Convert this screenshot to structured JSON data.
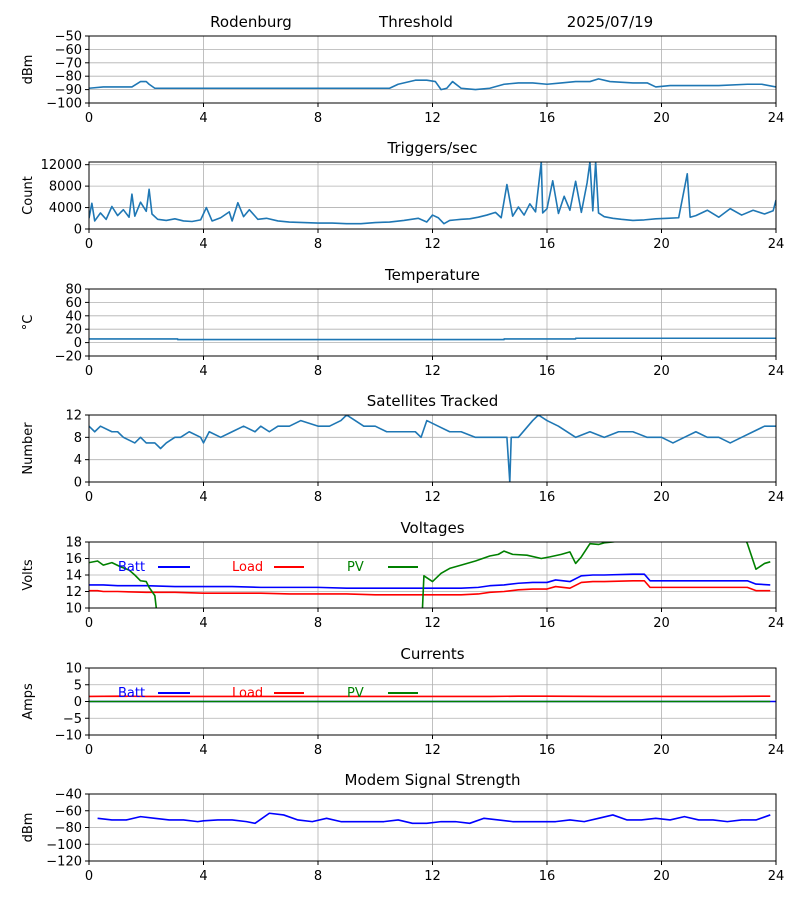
{
  "header": {
    "station": "Rodenburg",
    "mode": "Threshold",
    "date": "2025/07/19"
  },
  "chart_data": [
    {
      "id": "threshold",
      "type": "line",
      "title": "",
      "ylabel": "dBm",
      "xlim": [
        0,
        24
      ],
      "ylim": [
        -100,
        -50
      ],
      "xticks": [
        0,
        4,
        8,
        12,
        16,
        20,
        24
      ],
      "yticks": [
        -100,
        -90,
        -80,
        -70,
        -60,
        -50
      ],
      "grid": true,
      "series": [
        {
          "color": "#1f77b4",
          "x": [
            0,
            0.5,
            1,
            1.5,
            1.8,
            2.0,
            2.1,
            2.3,
            3,
            4,
            5,
            6,
            7,
            8,
            9,
            10,
            10.5,
            10.8,
            11.4,
            11.8,
            12.1,
            12.3,
            12.5,
            12.7,
            13,
            13.5,
            14,
            14.5,
            15,
            15.5,
            16,
            16.5,
            17,
            17.5,
            17.8,
            18.2,
            19,
            19.5,
            19.8,
            20.3,
            21,
            22,
            23,
            23.5,
            24
          ],
          "y": [
            -89,
            -88,
            -88,
            -88,
            -84,
            -84,
            -86,
            -89,
            -89,
            -89,
            -89,
            -89,
            -89,
            -89,
            -89,
            -89,
            -89,
            -86,
            -83,
            -83,
            -84,
            -90,
            -89,
            -84,
            -89,
            -90,
            -89,
            -86,
            -85,
            -85,
            -86,
            -85,
            -84,
            -84,
            -82,
            -84,
            -85,
            -85,
            -88,
            -87,
            -87,
            -87,
            -86,
            -86,
            -88
          ]
        }
      ]
    },
    {
      "id": "triggers",
      "type": "line",
      "title": "Triggers/sec",
      "ylabel": "Count",
      "xlim": [
        0,
        24
      ],
      "ylim": [
        0,
        12500
      ],
      "xticks": [
        0,
        4,
        8,
        12,
        16,
        20,
        24
      ],
      "yticks": [
        0,
        4000,
        8000,
        12000
      ],
      "grid": true,
      "series": [
        {
          "color": "#1f77b4",
          "x": [
            0,
            0.1,
            0.2,
            0.4,
            0.6,
            0.8,
            1.0,
            1.2,
            1.4,
            1.5,
            1.6,
            1.8,
            2.0,
            2.1,
            2.2,
            2.4,
            2.7,
            3.0,
            3.3,
            3.6,
            3.9,
            4.1,
            4.3,
            4.6,
            4.9,
            5.0,
            5.2,
            5.4,
            5.6,
            5.9,
            6.2,
            6.6,
            7.0,
            7.5,
            8.0,
            8.5,
            9.0,
            9.5,
            10.0,
            10.5,
            11.0,
            11.5,
            11.8,
            12.0,
            12.2,
            12.4,
            12.6,
            12.8,
            13.0,
            13.3,
            13.6,
            13.9,
            14.2,
            14.4,
            14.6,
            14.8,
            15.0,
            15.2,
            15.4,
            15.6,
            15.8,
            15.85,
            16.0,
            16.2,
            16.4,
            16.6,
            16.8,
            17.0,
            17.2,
            17.4,
            17.5,
            17.6,
            17.7,
            17.8,
            18.0,
            18.3,
            18.6,
            19.0,
            19.4,
            19.8,
            20.2,
            20.6,
            20.9,
            21.0,
            21.2,
            21.6,
            22.0,
            22.4,
            22.8,
            23.2,
            23.6,
            23.9,
            24.0
          ],
          "y": [
            2000,
            4800,
            1500,
            3000,
            1800,
            4200,
            2500,
            3600,
            2200,
            6500,
            2400,
            5000,
            3300,
            7400,
            2800,
            1800,
            1600,
            1900,
            1500,
            1400,
            1700,
            4000,
            1500,
            2100,
            3200,
            1500,
            4900,
            2300,
            3600,
            1800,
            2000,
            1500,
            1300,
            1200,
            1100,
            1100,
            1000,
            1000,
            1200,
            1300,
            1600,
            2000,
            1300,
            2600,
            2100,
            1000,
            1600,
            1700,
            1800,
            1900,
            2200,
            2600,
            3100,
            2100,
            8300,
            2400,
            4100,
            2600,
            4700,
            3200,
            12500,
            3000,
            3800,
            9000,
            2900,
            6100,
            3500,
            8900,
            3100,
            8600,
            12500,
            3400,
            12500,
            3000,
            2300,
            2000,
            1800,
            1600,
            1700,
            1900,
            2000,
            2100,
            10300,
            2200,
            2500,
            3500,
            2200,
            3800,
            2600,
            3500,
            2800,
            3400,
            5400
          ]
        }
      ]
    },
    {
      "id": "temperature",
      "type": "line",
      "title": "Temperature",
      "ylabel": "°C",
      "xlim": [
        0,
        24
      ],
      "ylim": [
        -20,
        80
      ],
      "xticks": [
        0,
        4,
        8,
        12,
        16,
        20,
        24
      ],
      "yticks": [
        -20,
        0,
        20,
        40,
        60,
        80
      ],
      "grid": true,
      "series": [
        {
          "color": "#1f77b4",
          "x": [
            0,
            3.1,
            3.1,
            14.5,
            14.5,
            17,
            17,
            24
          ],
          "y": [
            5.5,
            5.5,
            4.5,
            4.5,
            5.5,
            5.5,
            6.5,
            6.5
          ]
        }
      ]
    },
    {
      "id": "satellites",
      "type": "line",
      "title": "Satellites Tracked",
      "ylabel": "Number",
      "xlim": [
        0,
        24
      ],
      "ylim": [
        0,
        12
      ],
      "xticks": [
        0,
        4,
        8,
        12,
        16,
        20,
        24
      ],
      "yticks": [
        0,
        4,
        8,
        12
      ],
      "grid": true,
      "series": [
        {
          "color": "#1f77b4",
          "x": [
            0,
            0.2,
            0.4,
            0.8,
            1.0,
            1.2,
            1.6,
            1.8,
            2.0,
            2.3,
            2.5,
            2.7,
            3.0,
            3.2,
            3.5,
            3.9,
            4.0,
            4.2,
            4.6,
            5.0,
            5.4,
            5.8,
            6.0,
            6.3,
            6.6,
            7.0,
            7.4,
            8.0,
            8.4,
            8.8,
            9.0,
            9.3,
            9.6,
            10.0,
            10.4,
            10.8,
            11.0,
            11.4,
            11.6,
            11.8,
            12.2,
            12.6,
            13.0,
            13.5,
            14.0,
            14.6,
            14.7,
            14.75,
            15.0,
            15.5,
            15.7,
            16.0,
            16.4,
            17.0,
            17.5,
            18.0,
            18.5,
            19.0,
            19.5,
            20.0,
            20.4,
            20.8,
            21.2,
            21.6,
            22.0,
            22.4,
            22.8,
            23.2,
            23.6,
            24.0
          ],
          "y": [
            10,
            9,
            10,
            9,
            9,
            8,
            7,
            8,
            7,
            7,
            6,
            7,
            8,
            8,
            9,
            8,
            7,
            9,
            8,
            9,
            10,
            9,
            10,
            9,
            10,
            10,
            11,
            10,
            10,
            11,
            12,
            11,
            10,
            10,
            9,
            9,
            9,
            9,
            8,
            11,
            10,
            9,
            9,
            8,
            8,
            8,
            0,
            8,
            8,
            11,
            12,
            11,
            10,
            8,
            9,
            8,
            9,
            9,
            8,
            8,
            7,
            8,
            9,
            8,
            8,
            7,
            8,
            9,
            10,
            10
          ]
        }
      ]
    },
    {
      "id": "voltages",
      "type": "line",
      "title": "Voltages",
      "ylabel": "Volts",
      "xlim": [
        0,
        24
      ],
      "ylim": [
        10,
        18
      ],
      "xticks": [
        0,
        4,
        8,
        12,
        16,
        20,
        24
      ],
      "yticks": [
        10,
        12,
        14,
        16,
        18
      ],
      "grid": true,
      "legend": "inline-top",
      "series": [
        {
          "name": "Batt",
          "color": "#0000ff",
          "x": [
            0,
            0.3,
            0.5,
            1,
            2,
            3,
            4,
            5,
            6,
            7,
            8,
            9,
            10,
            11,
            12,
            13,
            13.6,
            14,
            14.5,
            15,
            15.5,
            16,
            16.3,
            16.8,
            17.2,
            17.6,
            18,
            19,
            19.4,
            19.6,
            20,
            21,
            22,
            23,
            23.3,
            23.8
          ],
          "y": [
            12.8,
            12.8,
            12.8,
            12.7,
            12.7,
            12.6,
            12.6,
            12.6,
            12.5,
            12.5,
            12.5,
            12.4,
            12.4,
            12.4,
            12.4,
            12.4,
            12.5,
            12.7,
            12.8,
            13.0,
            13.1,
            13.1,
            13.4,
            13.2,
            13.9,
            14.0,
            14.0,
            14.1,
            14.1,
            13.3,
            13.3,
            13.3,
            13.3,
            13.3,
            12.9,
            12.8
          ]
        },
        {
          "name": "Load",
          "color": "#ff0000",
          "x": [
            0,
            0.3,
            0.5,
            1,
            2,
            3,
            4,
            5,
            6,
            7,
            8,
            9,
            10,
            11,
            12,
            13,
            13.6,
            14,
            14.5,
            15,
            15.5,
            16,
            16.3,
            16.8,
            17.2,
            17.6,
            18,
            19,
            19.4,
            19.6,
            20,
            21,
            22,
            23,
            23.3,
            23.8
          ],
          "y": [
            12.1,
            12.1,
            12.0,
            12.0,
            11.9,
            11.9,
            11.8,
            11.8,
            11.8,
            11.7,
            11.7,
            11.7,
            11.6,
            11.6,
            11.6,
            11.6,
            11.7,
            11.9,
            12.0,
            12.2,
            12.3,
            12.3,
            12.6,
            12.4,
            13.1,
            13.2,
            13.2,
            13.3,
            13.3,
            12.5,
            12.5,
            12.5,
            12.5,
            12.5,
            12.1,
            12.1
          ]
        },
        {
          "name": "PV",
          "color": "#008000",
          "x": [
            0,
            0.3,
            0.5,
            0.8,
            1.1,
            1.4,
            1.6,
            1.8,
            2.0,
            2.1,
            2.3,
            2.35,
            2.4,
            11.6,
            11.65,
            11.7,
            12.0,
            12.3,
            12.6,
            13.0,
            13.5,
            14.0,
            14.3,
            14.5,
            14.8,
            15.3,
            15.8,
            16.1,
            16.5,
            16.8,
            17.0,
            17.2,
            17.5,
            17.8,
            18.0,
            18.3,
            18.5,
            18.6,
            22.9,
            23.0,
            23.3,
            23.6,
            23.8
          ],
          "y": [
            15.5,
            15.7,
            15.2,
            15.5,
            15.0,
            14.6,
            14.0,
            13.3,
            13.2,
            12.5,
            11.5,
            10,
            9,
            9,
            10,
            13.9,
            13.2,
            14.2,
            14.8,
            15.2,
            15.7,
            16.3,
            16.5,
            16.9,
            16.5,
            16.4,
            16.0,
            16.2,
            16.5,
            16.8,
            15.4,
            16.2,
            17.8,
            17.7,
            17.9,
            18.0,
            18.1,
            18.5,
            18.5,
            17.8,
            14.7,
            15.4,
            15.6
          ]
        }
      ]
    },
    {
      "id": "currents",
      "type": "line",
      "title": "Currents",
      "ylabel": "Amps",
      "xlim": [
        0,
        24
      ],
      "ylim": [
        -10,
        10
      ],
      "xticks": [
        0,
        4,
        8,
        12,
        16,
        20,
        24
      ],
      "yticks": [
        -10,
        -5,
        0,
        5,
        10
      ],
      "grid": true,
      "legend": "inline-top",
      "series": [
        {
          "name": "Batt",
          "color": "#0000ff",
          "x": [
            0,
            24
          ],
          "y": [
            0,
            0
          ]
        },
        {
          "name": "Load",
          "color": "#ff0000",
          "x": [
            0,
            1,
            2,
            4,
            8,
            12,
            14,
            15,
            16,
            18,
            20,
            22,
            23.8
          ],
          "y": [
            1.5,
            1.6,
            1.5,
            1.5,
            1.5,
            1.5,
            1.5,
            1.6,
            1.6,
            1.5,
            1.5,
            1.5,
            1.6
          ]
        },
        {
          "name": "PV",
          "color": "#008000",
          "x": [
            0,
            23.8
          ],
          "y": [
            0,
            0
          ]
        }
      ]
    },
    {
      "id": "modem",
      "type": "line",
      "title": "Modem Signal Strength",
      "ylabel": "dBm",
      "xlim": [
        0,
        24
      ],
      "ylim": [
        -120,
        -40
      ],
      "xticks": [
        0,
        4,
        8,
        12,
        16,
        20,
        24
      ],
      "yticks": [
        -120,
        -100,
        -80,
        -60,
        -40
      ],
      "grid": true,
      "series": [
        {
          "color": "#0000ff",
          "x": [
            0.3,
            0.8,
            1.3,
            1.8,
            2.3,
            2.8,
            3.3,
            3.8,
            4.0,
            4.5,
            5.0,
            5.5,
            5.8,
            6.3,
            6.8,
            7.3,
            7.8,
            8.3,
            8.8,
            9.3,
            9.8,
            10.3,
            10.8,
            11.3,
            11.8,
            12.3,
            12.8,
            13.3,
            13.8,
            14.3,
            14.8,
            15.3,
            15.8,
            16.3,
            16.8,
            17.3,
            17.8,
            18.3,
            18.8,
            19.3,
            19.8,
            20.3,
            20.8,
            21.3,
            21.8,
            22.3,
            22.8,
            23.3,
            23.8
          ],
          "y": [
            -69,
            -71,
            -71,
            -67,
            -69,
            -71,
            -71,
            -73,
            -72,
            -71,
            -71,
            -73,
            -75,
            -63,
            -65,
            -71,
            -73,
            -69,
            -73,
            -73,
            -73,
            -73,
            -71,
            -75,
            -75,
            -73,
            -73,
            -75,
            -69,
            -71,
            -73,
            -73,
            -73,
            -73,
            -71,
            -73,
            -69,
            -65,
            -71,
            -71,
            -69,
            -71,
            -67,
            -71,
            -71,
            -73,
            -71,
            -71,
            -65
          ]
        }
      ]
    }
  ]
}
